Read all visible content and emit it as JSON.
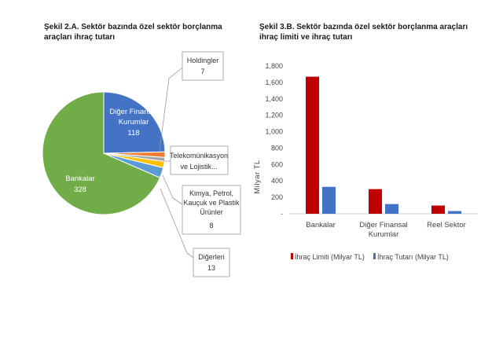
{
  "chart_data": [
    {
      "type": "pie",
      "title": "Şekil 2.A. Sektör bazında özel sektör borçlanma araçları ihraç tutarı",
      "slices": [
        {
          "label": "Bankalar",
          "value": 328,
          "color": "#70ad47"
        },
        {
          "label": "Diğer Finansal Kurumlar",
          "value": 118,
          "color": "#4472c4"
        },
        {
          "label": "Holdingler",
          "value": 7,
          "color": "#ed7d31"
        },
        {
          "label": "Telekomünikasyon ve Lojistik...",
          "value": 5,
          "color": "#a5a5a5"
        },
        {
          "label": "Kimya, Petrol, Kauçuk ve Plastik Ürünler",
          "value": 8,
          "color": "#ffc000"
        },
        {
          "label": "Diğerleri",
          "value": 13,
          "color": "#5b9bd5"
        }
      ],
      "labels": {
        "bankalar_name": "Bankalar",
        "bankalar_value": "328",
        "dfk_line1": "Diğer Finansal",
        "dfk_line2": "Kurumlar",
        "dfk_value": "118",
        "holdingler_name": "Holdingler",
        "holdingler_value": "7",
        "telekom_line1": "Telekomünikasyon",
        "telekom_line2": "ve Lojistik...",
        "kimya_line1": "Kimya, Petrol,",
        "kimya_line2": "Kauçuk ve Plastik",
        "kimya_line3": "Ürünler",
        "kimya_value": "8",
        "digerleri_name": "Diğerleri",
        "digerleri_value": "13"
      }
    },
    {
      "type": "bar",
      "title": "Şekil 3.B. Sektör bazında özel sektör borçlanma araçları ihraç limiti ve ihraç tutarı",
      "categories": [
        "Bankalar",
        "Diğer Finansal Kurumlar",
        "Reel Sektor"
      ],
      "category_lines": [
        [
          "Bankalar"
        ],
        [
          "Diğer Finansal",
          "Kurumlar"
        ],
        [
          "Reel Sektor"
        ]
      ],
      "series": [
        {
          "name": "İhraç Limiti (Milyar TL)",
          "color": "#c00000",
          "values": [
            1670,
            300,
            100
          ]
        },
        {
          "name": "İhraç Tutarı (Milyar TL)",
          "color": "#4472c4",
          "values": [
            328,
            118,
            33
          ]
        }
      ],
      "ylabel": "Milyar TL",
      "ylim": [
        0,
        1800
      ],
      "yticks": [
        0,
        200,
        400,
        600,
        800,
        1000,
        1200,
        1400,
        1600,
        1800
      ],
      "ytick_labels": [
        "-",
        "200",
        "400",
        "600",
        "800",
        "1,000",
        "1,200",
        "1,400",
        "1,600",
        "1,800"
      ],
      "legend_position": "bottom",
      "grid": false
    }
  ]
}
